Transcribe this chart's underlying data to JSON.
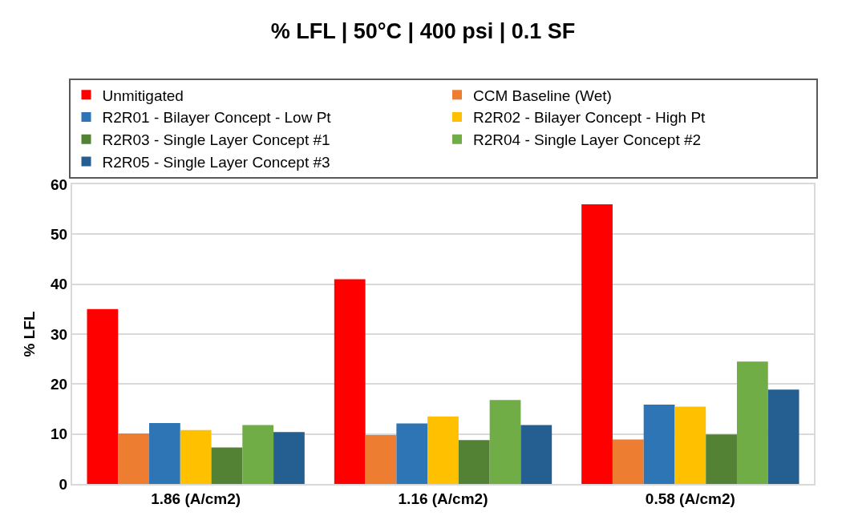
{
  "chart_data": {
    "type": "bar",
    "title": "% LFL | 50°C | 400 psi | 0.1 SF",
    "ylabel": "% LFL",
    "categories": [
      "1.86 (A/cm2)",
      "1.16 (A/cm2)",
      "0.58 (A/cm2)"
    ],
    "series": [
      {
        "name": "Unmitigated",
        "color": "#ff0000",
        "values": [
          35,
          41,
          56
        ]
      },
      {
        "name": "CCM Baseline (Wet)",
        "color": "#ed7d31",
        "values": [
          10.1,
          9.8,
          8.9
        ]
      },
      {
        "name": "R2R01 - Bilayer Concept - Low Pt",
        "color": "#2e75b6",
        "values": [
          12.2,
          12.1,
          15.9
        ]
      },
      {
        "name": "R2R02 - Bilayer Concept - High Pt",
        "color": "#ffc000",
        "values": [
          10.8,
          13.5,
          15.5
        ]
      },
      {
        "name": "R2R03 - Single Layer Concept #1",
        "color": "#548235",
        "values": [
          7.3,
          8.8,
          9.9
        ]
      },
      {
        "name": "R2R04 - Single Layer Concept #2",
        "color": "#70ad47",
        "values": [
          11.8,
          16.8,
          24.5
        ]
      },
      {
        "name": "R2R05 - Single Layer Concept #3",
        "color": "#255e91",
        "values": [
          10.4,
          11.8,
          18.9
        ]
      }
    ],
    "ylim": [
      0,
      60
    ],
    "yticks": [
      0,
      10,
      20,
      30,
      40,
      50,
      60
    ],
    "grid": "y",
    "legend": "top"
  }
}
